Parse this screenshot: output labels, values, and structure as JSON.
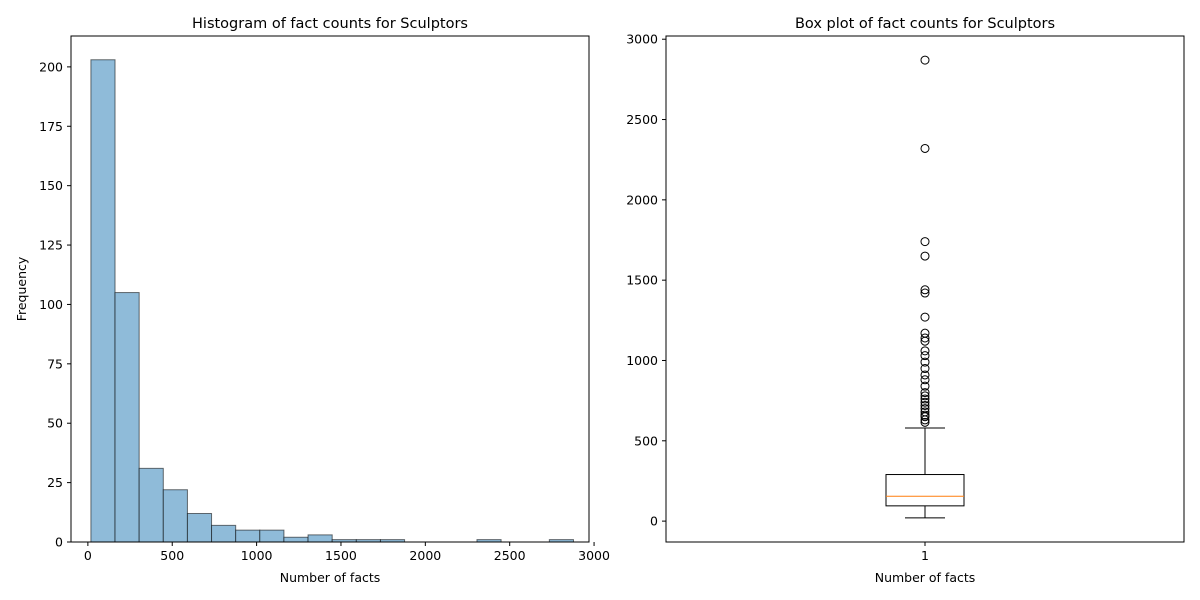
{
  "chart_data": [
    {
      "type": "bar",
      "subtype": "histogram",
      "title": "Histogram of fact counts for Sculptors",
      "xlabel": "Number of facts",
      "ylabel": "Frequency",
      "xlim": [
        -100,
        2970
      ],
      "ylim": [
        0,
        213
      ],
      "xticks": [
        0,
        500,
        1000,
        1500,
        2000,
        2500,
        3000
      ],
      "yticks": [
        0,
        25,
        50,
        75,
        100,
        125,
        150,
        175,
        200
      ],
      "grid": false,
      "bar_color": "#8fbbd9",
      "edge_color": "#000000",
      "bin_edges": [
        18,
        161,
        304,
        447,
        590,
        733,
        876,
        1019,
        1162,
        1305,
        1448,
        1591,
        1734,
        1877,
        2020,
        2163,
        2306,
        2449,
        2592,
        2735,
        2878
      ],
      "values": [
        203,
        105,
        31,
        22,
        12,
        7,
        5,
        5,
        2,
        3,
        1,
        1,
        1,
        0,
        0,
        0,
        1,
        0,
        0,
        1
      ]
    },
    {
      "type": "box",
      "title": "Box plot of fact counts for Sculptors",
      "xlabel": "Number of facts",
      "ylabel": "",
      "categories": [
        "1"
      ],
      "ylim": [
        -130,
        3020
      ],
      "yticks": [
        0,
        500,
        1000,
        1500,
        2000,
        2500,
        3000
      ],
      "grid": false,
      "median_color": "#ff7f0e",
      "box": {
        "min": 20,
        "q1": 95,
        "median": 155,
        "q3": 290,
        "max": 580
      },
      "outliers": [
        615,
        630,
        650,
        660,
        680,
        700,
        720,
        740,
        760,
        780,
        800,
        840,
        880,
        910,
        950,
        990,
        1030,
        1060,
        1120,
        1140,
        1170,
        1270,
        1420,
        1440,
        1650,
        1740,
        2320,
        2870
      ]
    }
  ]
}
